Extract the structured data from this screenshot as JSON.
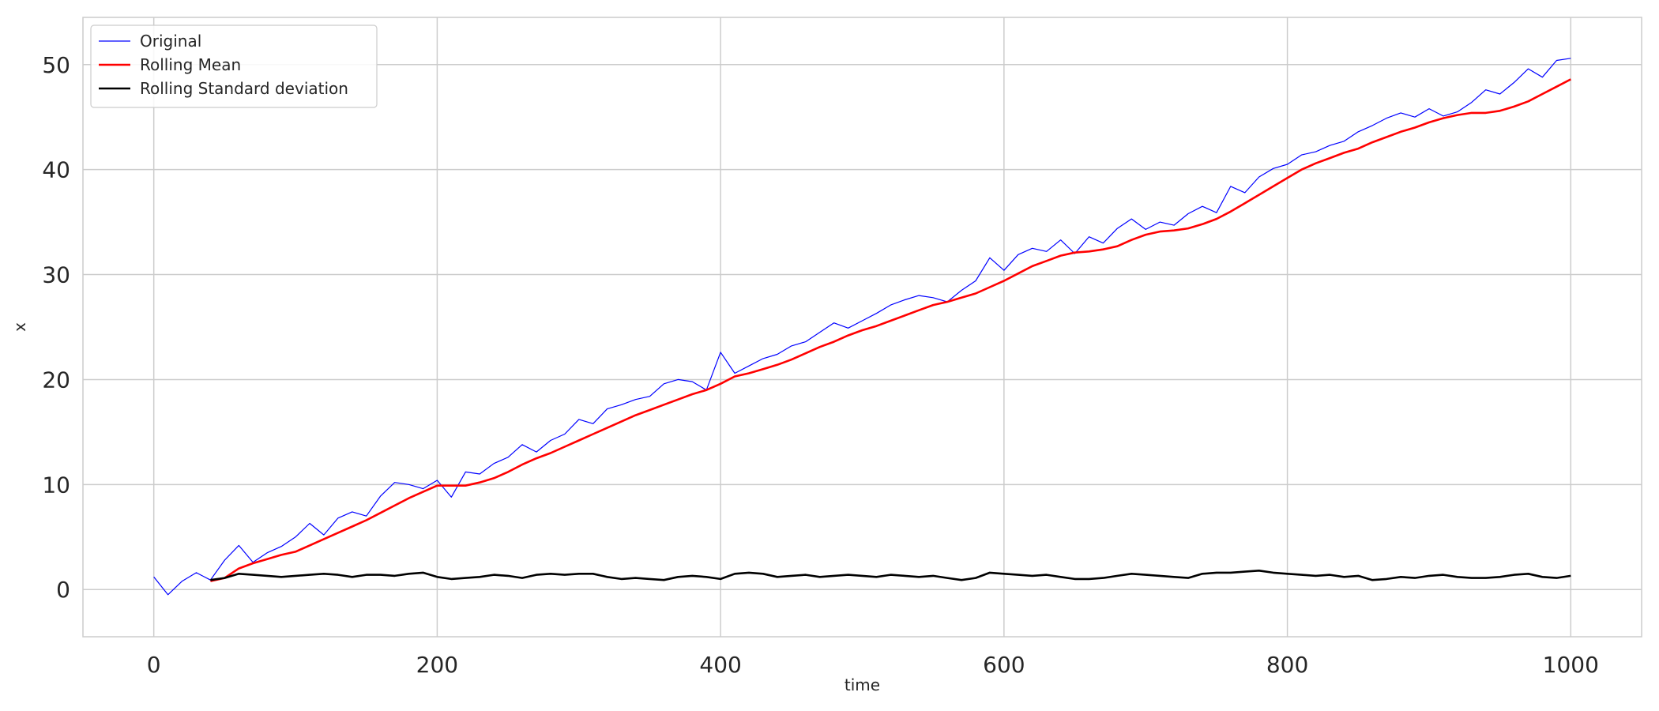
{
  "chart_data": {
    "type": "line",
    "title": "",
    "xlabel": "time",
    "ylabel": "x",
    "xlim": [
      -50,
      1050
    ],
    "ylim": [
      -4.5,
      54.5
    ],
    "xticks": [
      0,
      200,
      400,
      600,
      800,
      1000
    ],
    "yticks": [
      0,
      10,
      20,
      30,
      40,
      50
    ],
    "grid": true,
    "legend_position": "top-left",
    "series": [
      {
        "name": "Original",
        "color": "#0000ff",
        "x": [
          0,
          10,
          20,
          30,
          40,
          50,
          60,
          70,
          80,
          90,
          100,
          110,
          120,
          130,
          140,
          150,
          160,
          170,
          180,
          190,
          200,
          210,
          220,
          230,
          240,
          250,
          260,
          270,
          280,
          290,
          300,
          310,
          320,
          330,
          340,
          350,
          360,
          370,
          380,
          390,
          400,
          410,
          420,
          430,
          440,
          450,
          460,
          470,
          480,
          490,
          500,
          510,
          520,
          530,
          540,
          550,
          560,
          570,
          580,
          590,
          600,
          610,
          620,
          630,
          640,
          650,
          660,
          670,
          680,
          690,
          700,
          710,
          720,
          730,
          740,
          750,
          760,
          770,
          780,
          790,
          800,
          810,
          820,
          830,
          840,
          850,
          860,
          870,
          880,
          890,
          900,
          910,
          920,
          930,
          940,
          950,
          960,
          970,
          980,
          990,
          1000
        ],
        "y": [
          1.2,
          -0.5,
          0.8,
          1.6,
          0.9,
          2.8,
          4.2,
          2.6,
          3.5,
          4.1,
          5.0,
          6.3,
          5.2,
          6.8,
          7.4,
          7.0,
          8.9,
          10.2,
          10.0,
          9.6,
          10.4,
          8.8,
          11.2,
          11.0,
          12.0,
          12.6,
          13.8,
          13.1,
          14.2,
          14.8,
          16.2,
          15.8,
          17.2,
          17.6,
          18.1,
          18.4,
          19.6,
          20.0,
          19.8,
          19.0,
          22.6,
          20.6,
          21.3,
          22.0,
          22.4,
          23.2,
          23.6,
          24.5,
          25.4,
          24.9,
          25.6,
          26.3,
          27.1,
          27.6,
          28.0,
          27.8,
          27.4,
          28.5,
          29.4,
          31.6,
          30.4,
          31.9,
          32.5,
          32.2,
          33.3,
          32.0,
          33.6,
          33.0,
          34.4,
          35.3,
          34.3,
          35.0,
          34.7,
          35.8,
          36.5,
          35.9,
          38.4,
          37.8,
          39.3,
          40.1,
          40.5,
          41.4,
          41.7,
          42.3,
          42.7,
          43.6,
          44.2,
          44.9,
          45.4,
          45.0,
          45.8,
          45.1,
          45.5,
          46.4,
          47.6,
          47.2,
          48.3,
          49.6,
          48.8,
          50.4,
          50.6
        ]
      },
      {
        "name": "Rolling Mean",
        "color": "#ff0000",
        "x": [
          40,
          50,
          60,
          70,
          80,
          90,
          100,
          110,
          120,
          130,
          140,
          150,
          160,
          170,
          180,
          190,
          200,
          210,
          220,
          230,
          240,
          250,
          260,
          270,
          280,
          290,
          300,
          310,
          320,
          330,
          340,
          350,
          360,
          370,
          380,
          390,
          400,
          410,
          420,
          430,
          440,
          450,
          460,
          470,
          480,
          490,
          500,
          510,
          520,
          530,
          540,
          550,
          560,
          570,
          580,
          590,
          600,
          610,
          620,
          630,
          640,
          650,
          660,
          670,
          680,
          690,
          700,
          710,
          720,
          730,
          740,
          750,
          760,
          770,
          780,
          790,
          800,
          810,
          820,
          830,
          840,
          850,
          860,
          870,
          880,
          890,
          900,
          910,
          920,
          930,
          940,
          950,
          960,
          970,
          980,
          990,
          1000
        ],
        "y": [
          0.8,
          1.1,
          2.0,
          2.5,
          2.9,
          3.3,
          3.6,
          4.2,
          4.8,
          5.4,
          6.0,
          6.6,
          7.3,
          8.0,
          8.7,
          9.3,
          9.9,
          9.9,
          9.9,
          10.2,
          10.6,
          11.2,
          11.9,
          12.5,
          13.0,
          13.6,
          14.2,
          14.8,
          15.4,
          16.0,
          16.6,
          17.1,
          17.6,
          18.1,
          18.6,
          19.0,
          19.6,
          20.3,
          20.6,
          21.0,
          21.4,
          21.9,
          22.5,
          23.1,
          23.6,
          24.2,
          24.7,
          25.1,
          25.6,
          26.1,
          26.6,
          27.1,
          27.4,
          27.8,
          28.2,
          28.8,
          29.4,
          30.1,
          30.8,
          31.3,
          31.8,
          32.1,
          32.2,
          32.4,
          32.7,
          33.3,
          33.8,
          34.1,
          34.2,
          34.4,
          34.8,
          35.3,
          36.0,
          36.8,
          37.6,
          38.4,
          39.2,
          40.0,
          40.6,
          41.1,
          41.6,
          42.0,
          42.6,
          43.1,
          43.6,
          44.0,
          44.5,
          44.9,
          45.2,
          45.4,
          45.4,
          45.6,
          46.0,
          46.5,
          47.2,
          47.9,
          48.6
        ]
      },
      {
        "name": "Rolling Standard deviation",
        "color": "#000000",
        "x": [
          40,
          50,
          60,
          70,
          80,
          90,
          100,
          110,
          120,
          130,
          140,
          150,
          160,
          170,
          180,
          190,
          200,
          210,
          220,
          230,
          240,
          250,
          260,
          270,
          280,
          290,
          300,
          310,
          320,
          330,
          340,
          350,
          360,
          370,
          380,
          390,
          400,
          410,
          420,
          430,
          440,
          450,
          460,
          470,
          480,
          490,
          500,
          510,
          520,
          530,
          540,
          550,
          560,
          570,
          580,
          590,
          600,
          610,
          620,
          630,
          640,
          650,
          660,
          670,
          680,
          690,
          700,
          710,
          720,
          730,
          740,
          750,
          760,
          770,
          780,
          790,
          800,
          810,
          820,
          830,
          840,
          850,
          860,
          870,
          880,
          890,
          900,
          910,
          920,
          930,
          940,
          950,
          960,
          970,
          980,
          990,
          1000
        ],
        "y": [
          0.9,
          1.1,
          1.5,
          1.4,
          1.3,
          1.2,
          1.3,
          1.4,
          1.5,
          1.4,
          1.2,
          1.4,
          1.4,
          1.3,
          1.5,
          1.6,
          1.2,
          1.0,
          1.1,
          1.2,
          1.4,
          1.3,
          1.1,
          1.4,
          1.5,
          1.4,
          1.5,
          1.5,
          1.2,
          1.0,
          1.1,
          1.0,
          0.9,
          1.2,
          1.3,
          1.2,
          1.0,
          1.5,
          1.6,
          1.5,
          1.2,
          1.3,
          1.4,
          1.2,
          1.3,
          1.4,
          1.3,
          1.2,
          1.4,
          1.3,
          1.2,
          1.3,
          1.1,
          0.9,
          1.1,
          1.6,
          1.5,
          1.4,
          1.3,
          1.4,
          1.2,
          1.0,
          1.0,
          1.1,
          1.3,
          1.5,
          1.4,
          1.3,
          1.2,
          1.1,
          1.5,
          1.6,
          1.6,
          1.7,
          1.8,
          1.6,
          1.5,
          1.4,
          1.3,
          1.4,
          1.2,
          1.3,
          0.9,
          1.0,
          1.2,
          1.1,
          1.3,
          1.4,
          1.2,
          1.1,
          1.1,
          1.2,
          1.4,
          1.5,
          1.2,
          1.1,
          1.3
        ]
      }
    ]
  }
}
